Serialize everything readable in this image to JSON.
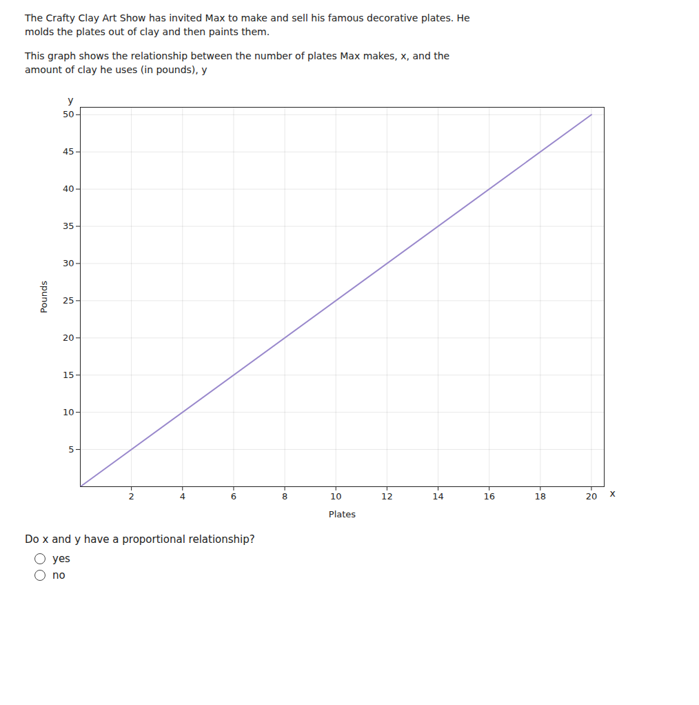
{
  "chart_data": {
    "type": "line",
    "subtitle": [
      [
        "The Crafty Clay Art Show has invited Max to make and sell his famous decorative plates. He",
        "molds the plates out of clay and then paints them."
      ],
      [
        "This graph shows the relationship between the number of plates Max makes, x, and the",
        "amount of clay he uses (in pounds), y"
      ]
    ],
    "x": [
      0,
      20
    ],
    "values": [
      0,
      50
    ],
    "color": "#9988cc",
    "xlabel": "Plates",
    "ylabel": "Pounds",
    "xlim": [
      0,
      20.5
    ],
    "ylim": [
      0,
      51
    ],
    "xticks": [
      2,
      4,
      6,
      8,
      10,
      12,
      14,
      16,
      18,
      20
    ],
    "yticks": [
      5,
      10,
      15,
      20,
      25,
      30,
      35,
      40,
      45,
      50
    ],
    "grid": true,
    "annotations": [
      {
        "text": "x",
        "axis": "x"
      },
      {
        "text": "y",
        "axis": "y"
      }
    ],
    "question": "Do x and y have a proportional relationship?",
    "answers": [
      "yes",
      "no"
    ]
  }
}
